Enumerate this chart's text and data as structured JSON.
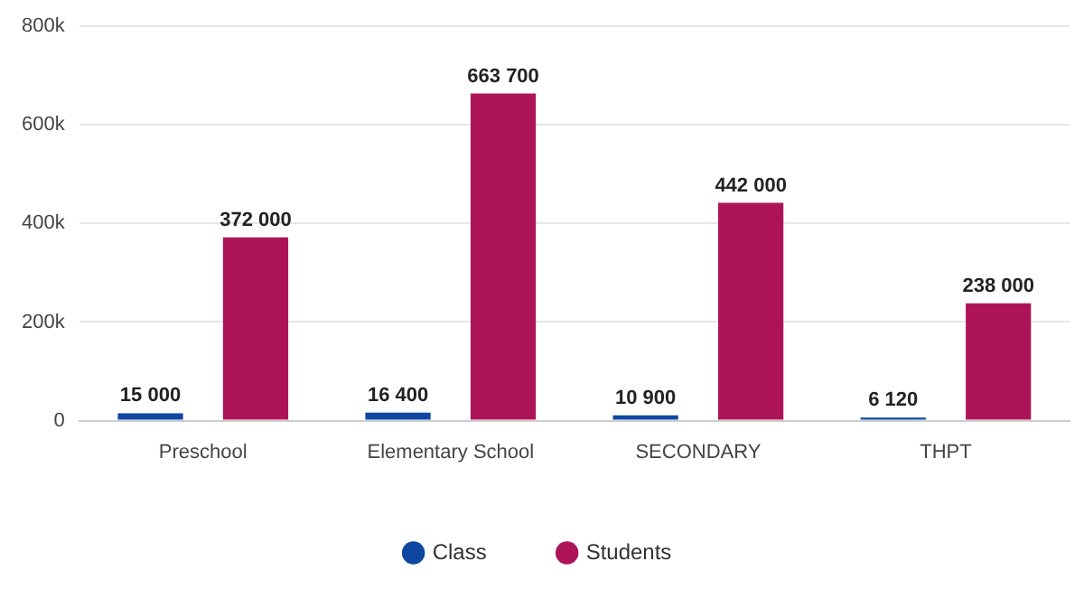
{
  "chart_data": {
    "type": "bar",
    "categories": [
      "Preschool",
      "Elementary School",
      "SECONDARY",
      "THPT"
    ],
    "series": [
      {
        "name": "Class",
        "color": "#0d47a1",
        "values": [
          15000,
          16400,
          10900,
          6120
        ],
        "value_labels": [
          "15 000",
          "16 400",
          "10 900",
          "6 120"
        ]
      },
      {
        "name": "Students",
        "color": "#ad1457",
        "values": [
          372000,
          663700,
          442000,
          238000
        ],
        "value_labels": [
          "372 000",
          "663 700",
          "442 000",
          "238 000"
        ]
      }
    ],
    "ylim": [
      0,
      800000
    ],
    "yticks": [
      {
        "value": 0,
        "label": "0"
      },
      {
        "value": 200000,
        "label": "200k"
      },
      {
        "value": 400000,
        "label": "400k"
      },
      {
        "value": 600000,
        "label": "600k"
      },
      {
        "value": 800000,
        "label": "800k"
      }
    ],
    "grid": "y",
    "legend": "bottom"
  }
}
